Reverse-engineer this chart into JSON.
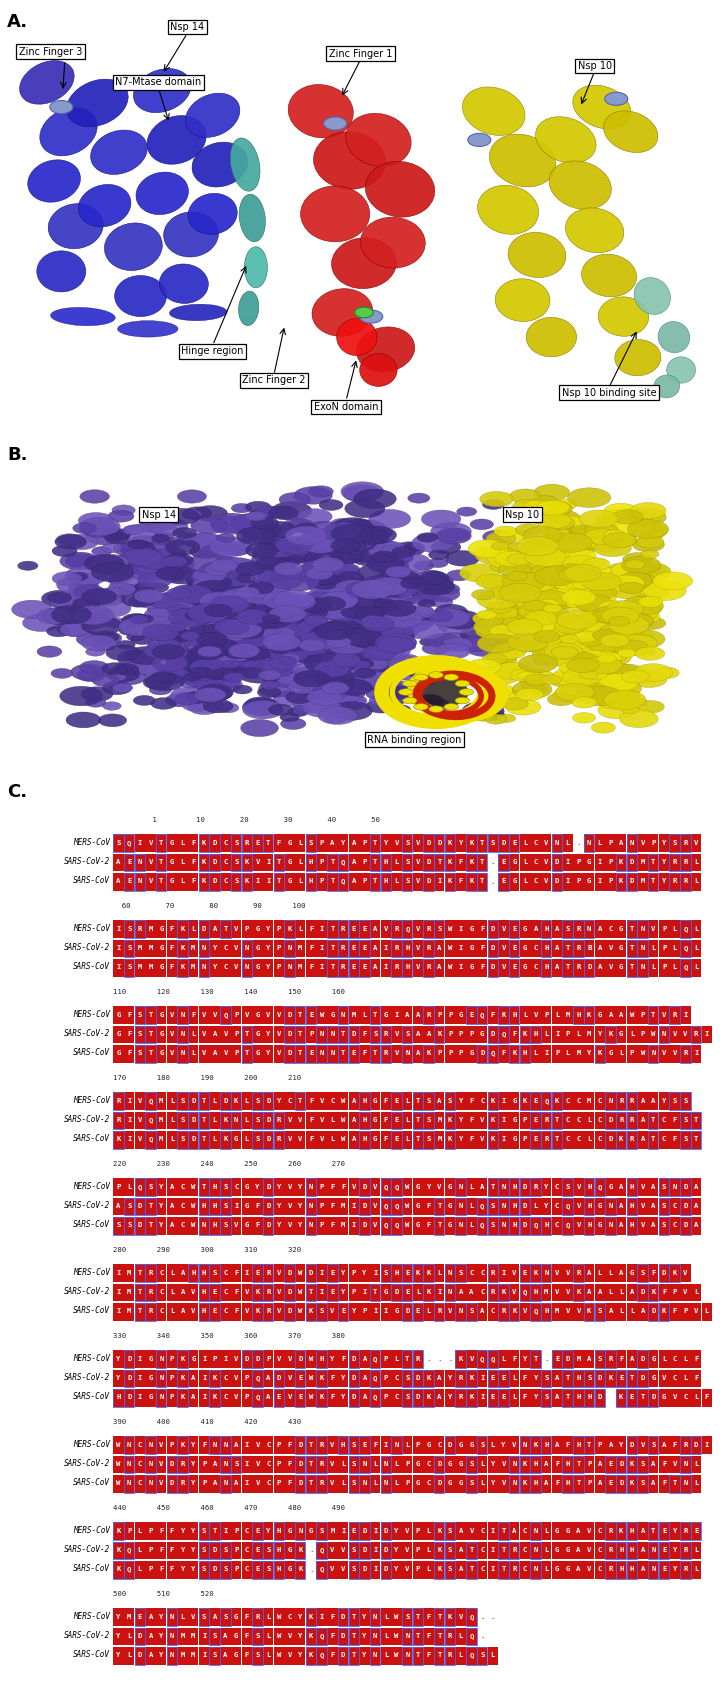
{
  "panel_a_label": "A.",
  "panel_b_label": "B.",
  "panel_c_label": "C.",
  "background_color": "#ffffff",
  "fig_width": 7.28,
  "fig_height": 16.93,
  "alignment_groups": [
    {
      "numbers": "         1         10        20        30        40        50",
      "rows": [
        {
          "name": "MERS-CoV",
          "seq": "SQIVTGLFKDCSRETFGLSPAYAPTYVSVDDKYKTSDELCVNL.NLPANVPYSRV"
        },
        {
          "name": "SARS-CoV-2",
          "seq": "AENVTGLFKDCSKVITGLHPTQAPTHLSVDTKFKT.EGLCVDIPGIPKDMTYRRL"
        },
        {
          "name": "SARS-CoV",
          "seq": "AENVTGLFKDCSKIITGLHPTQAPTHLSVDIKFKT.EGLCVDIPGIPKDMTYRRL"
        }
      ]
    },
    {
      "numbers": "  60        70        80        90       100",
      "rows": [
        {
          "name": "MERS-CoV",
          "seq": "ISRMGFKLDATVPGYPKLFITREEAVRQVRSWIGFDVEGAHASRNACGTNVPLQL"
        },
        {
          "name": "SARS-CoV-2",
          "seq": "ISMMGFKMNYCVNGYPNMFITREEAIRHVRAWIGFDVEGCHATRBAVGTNLPLQL"
        },
        {
          "name": "SARS-CoV",
          "seq": "ISMMGFKMNYCVNGYPNMFITREEAIRHVRAWIGFDVEGCHATRDAVGTNLPLQL"
        }
      ]
    },
    {
      "numbers": "110       120       130       140       150       160",
      "rows": [
        {
          "name": "MERS-CoV",
          "seq": "GFSTGVNFVVQPVGVVDTEWGNMLTGIAARPPGEQFKHLVPLMHKGAAWPTVRI"
        },
        {
          "name": "SARS-CoV-2",
          "seq": "GFSTGVNLVAVPTGYVDTPNNTDFSRVSAAKPPPGDQFKHLIPLMYKGLPWNVVRI"
        },
        {
          "name": "SARS-CoV",
          "seq": "GFSTGVNLVAVPTGYVDTENNTEFTRVNAKPPPGDQFKHLIPLMYKGLPWNVVRI"
        }
      ]
    },
    {
      "numbers": "170       180       190       200       210",
      "rows": [
        {
          "name": "MERS-CoV",
          "seq": "RIVQMLSDTLDKLSDYCTFVCWAHGFELTSASYFCKIGKEQKCCMCNRRAAYSS"
        },
        {
          "name": "SARS-CoV-2",
          "seq": "RIVQMLSDTLKNLSDRVVFVLWAHGFELTSMKYFVKIGPERTCCLCDRRATCFST"
        },
        {
          "name": "SARS-CoV",
          "seq": "KIVQMLSDTLKGLSDRVVFVLWAHGFELTSMKYFVKIGPERTCCLCDKRATCFST"
        }
      ]
    },
    {
      "numbers": "220       230       240       250       260       270",
      "rows": [
        {
          "name": "MERS-CoV",
          "seq": "PLQSYACWTHSCGYDYVYNPFFVDVQQWGYVGNLATNHDRYCSVHQGAHVASNDA"
        },
        {
          "name": "SARS-CoV-2",
          "seq": "ASDTYACWHHSIGFDYVYNPFMIDVQQWGFTGNLQSNHDLYCQVHGNAHVASCDA"
        },
        {
          "name": "SARS-CoV",
          "seq": "SSDTYACWNHSVGFDYVYNPFMIDVQQWGFTGNLQSNHDQHCQVHGNAHVASCDA"
        }
      ]
    },
    {
      "numbers": "280       290       300       310       320",
      "rows": [
        {
          "name": "MERS-CoV",
          "seq": "IMTRCLAHHSCFIERVDWDIEYPYISHEKKLNSCCRIVEKNVVRALLAGSFDKV"
        },
        {
          "name": "SARS-CoV-2",
          "seq": "IMTRCLAVHECFVKRVDWTIEYPITGDELKINAACRKVQHMVVKAALLADKFPVL"
        },
        {
          "name": "SARS-CoV",
          "seq": "IMTRCLAVHECFVKRVDWKSVEYPIIGDELRVNSACRKVQHMVVKSALLADKFPVL"
        }
      ]
    },
    {
      "numbers": "330       340       350       360       370       380",
      "rows": [
        {
          "name": "MERS-CoV",
          "seq": "YDIGNPKGIPIVDDPVVDWHYFDAQPLTR...KVQQLFYT.EDMASRFADGLCLF"
        },
        {
          "name": "SARS-CoV-2",
          "seq": "YDIGNPKAIKCVPQADVEWKFYDAQPCSDKAYRKIEELFYSATHSDKETDGVCLF"
        },
        {
          "name": "SARS-CoV",
          "seq": "HDIGNPKAIKCVPQAEVEWKFYDAQPCSDKAYRKIEELFYSATHHD KETDGVCLF"
        }
      ]
    },
    {
      "numbers": "390       400       410       420       430",
      "rows": [
        {
          "name": "MERS-CoV",
          "seq": "WNCNVPKYFNNAIVCPFDTRVHSEFINLPGCDGGSLYVNKHAFHTPAYDVSAFRDI"
        },
        {
          "name": "SARS-CoV-2",
          "seq": "WNCNVDRYPANSIVCPFDTRVLSNLNLPGCDGGSLYVNKHAFHTPAEDKSAFVNL"
        },
        {
          "name": "SARS-CoV",
          "seq": "WNCNVDRYPANAIVCPFDTRVLSNLNLPGCDGGSLYVNKHAFHTPAEDKSAFTNL"
        }
      ]
    },
    {
      "numbers": "440       450       460       470       480       490",
      "rows": [
        {
          "name": "MERS-CoV",
          "seq": "KPLPFFYYSTIPCEYHGNGSMIEDIDYVPLKSAVCITACNLGGAVCRKHATEYRE"
        },
        {
          "name": "SARS-CoV-2",
          "seq": "KQLPFFYYSDSPCESHGK.QVVSDIDYVPLKSATCITRCNLGGAVCRHHANEYRL"
        },
        {
          "name": "SARS-CoV",
          "seq": "KQLPFFYYSDSPCESHGK.QVVSDIDYVPLKSATCITRCNLGGAVCRHHANEYRL"
        }
      ]
    },
    {
      "numbers": "500       510       520",
      "rows": [
        {
          "name": "MERS-CoV",
          "seq": "YMEAYNLVSASGFRLWCYKIFDTYNLWSTFTKVQ.."
        },
        {
          "name": "SARS-CoV-2",
          "seq": "YLDAYNMMISAGFSLWVYKQFDTYNLWNTFTRLQ."
        },
        {
          "name": "SARS-CoV",
          "seq": "YLDAYNMMISAGFSLWVYKQFDTYNLWNTFTRLQSL"
        }
      ]
    }
  ]
}
